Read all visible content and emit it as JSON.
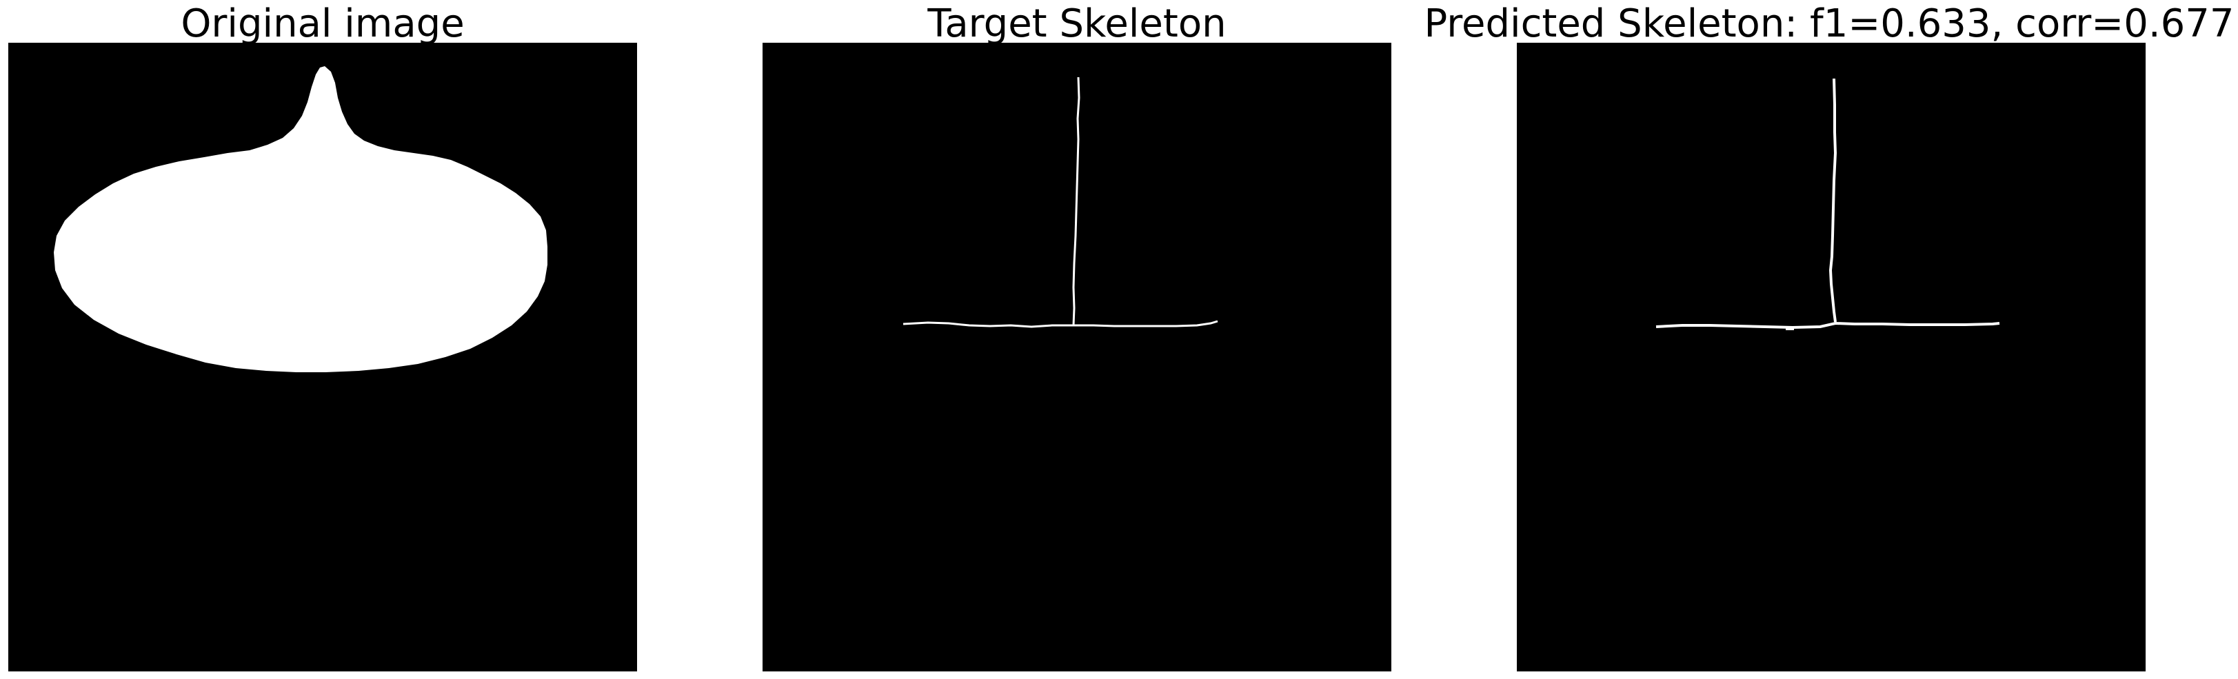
{
  "panels": [
    {
      "title": "Original image"
    },
    {
      "title": "Target Skeleton"
    },
    {
      "title": "Predicted Skeleton: f1=0.633, corr=0.677"
    }
  ],
  "colors": {
    "background": "#000000",
    "foreground": "#ffffff"
  }
}
